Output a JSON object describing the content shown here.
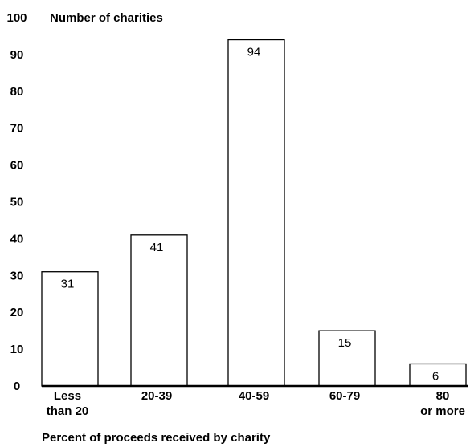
{
  "chart_data": {
    "type": "bar",
    "ylabel": "Number of  charities",
    "xlabel": "Percent of proceeds received by charity",
    "categories": [
      [
        "Less",
        "than 20"
      ],
      [
        "20-39"
      ],
      [
        "40-59"
      ],
      [
        "60-79"
      ],
      [
        "80",
        "or more"
      ]
    ],
    "values": [
      31,
      41,
      94,
      15,
      6
    ],
    "ylim": [
      0,
      100
    ],
    "yticks": [
      "0",
      "10",
      "20",
      "30",
      "40",
      "50",
      "60",
      "70",
      "80",
      "90",
      "100"
    ],
    "grid": false,
    "bar_fill": "#ffffff",
    "bar_stroke": "#000000"
  }
}
